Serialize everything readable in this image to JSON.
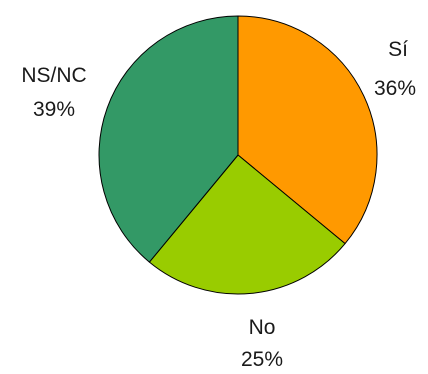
{
  "chart_data": {
    "type": "pie",
    "title": "",
    "start_angle_deg": 0,
    "direction": "clockwise",
    "legend": "none",
    "slices": [
      {
        "label": "Sí",
        "value": 36,
        "value_label": "36%",
        "color": "#ff9900"
      },
      {
        "label": "No",
        "value": 25,
        "value_label": "25%",
        "color": "#99cc00"
      },
      {
        "label": "NS/NC",
        "value": 39,
        "value_label": "39%",
        "color": "#339966"
      }
    ]
  }
}
